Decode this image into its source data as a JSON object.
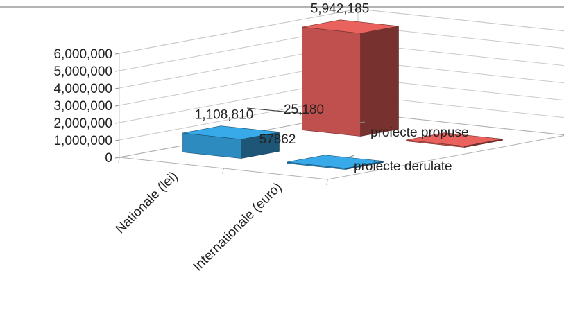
{
  "chart_data": {
    "type": "bar",
    "title": "",
    "xlabel": "",
    "ylabel": "",
    "categories": [
      "Nationale (lei)",
      "Internationale (euro)"
    ],
    "series": [
      {
        "name": "proiecte propuse",
        "values": [
          5942185,
          25180
        ],
        "labels": [
          "5,942,185",
          "25,180"
        ],
        "color": "#c0504d"
      },
      {
        "name": "proiecte derulate",
        "values": [
          1108810,
          57862
        ],
        "labels": [
          "1,108,810",
          "57862"
        ],
        "color": "#2e8bc0"
      }
    ],
    "ylim": [
      0,
      6000000
    ],
    "yticks": [
      "0",
      "1,000,000",
      "2,000,000",
      "3,000,000",
      "4,000,000",
      "5,000,000",
      "6,000,000"
    ],
    "grid": true,
    "legend": "right",
    "projection": "3d"
  }
}
